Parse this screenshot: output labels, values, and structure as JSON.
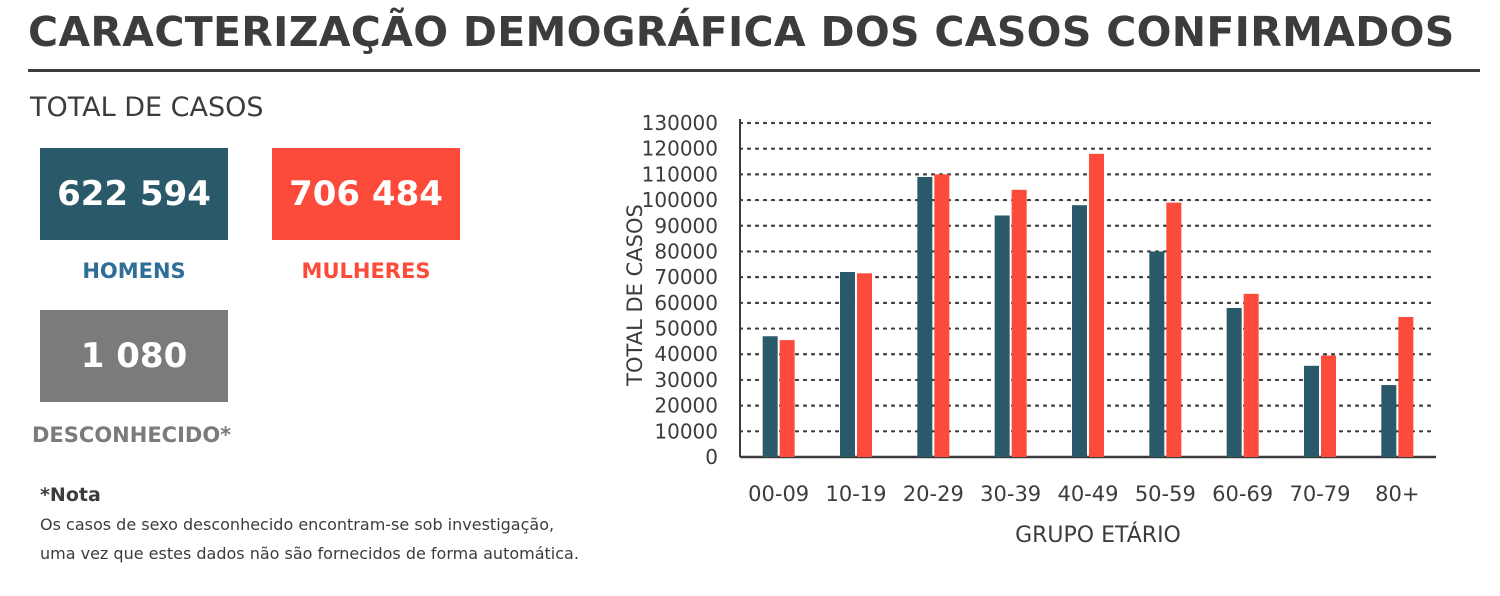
{
  "header": {
    "title": "CARACTERIZAÇÃO DEMOGRÁFICA DOS CASOS CONFIRMADOS"
  },
  "totals": {
    "label": "TOTAL DE CASOS",
    "men": {
      "value": "622 594",
      "label": "HOMENS",
      "color": "#2a5a6a",
      "label_color": "#2e6f99"
    },
    "women": {
      "value": "706 484",
      "label": "MULHERES",
      "color": "#fc4a3b"
    },
    "unknown": {
      "value": "1 080",
      "label": "DESCONHECIDO*",
      "color": "#7b7b7b"
    }
  },
  "note": {
    "title": "*Nota",
    "line1": "Os casos de sexo desconhecido encontram-se sob investigação,",
    "line2": "uma vez que estes dados não são fornecidos de forma automática."
  },
  "chart_data": {
    "type": "bar",
    "title": "",
    "xlabel": "GRUPO ETÁRIO",
    "ylabel": "TOTAL DE CASOS",
    "ylim": [
      0,
      130000
    ],
    "yticks": [
      0,
      10000,
      20000,
      30000,
      40000,
      50000,
      60000,
      70000,
      80000,
      90000,
      100000,
      110000,
      120000,
      130000
    ],
    "grid": true,
    "categories": [
      "00-09",
      "10-19",
      "20-29",
      "30-39",
      "40-49",
      "50-59",
      "60-69",
      "70-79",
      "80+"
    ],
    "series": [
      {
        "color": "#2a5a6a",
        "values": [
          47000,
          72000,
          109000,
          94000,
          98000,
          80000,
          58000,
          35500,
          28000
        ]
      },
      {
        "color": "#fc4a3b",
        "values": [
          45500,
          71500,
          110000,
          104000,
          118000,
          99000,
          63500,
          39500,
          54500
        ]
      }
    ]
  }
}
